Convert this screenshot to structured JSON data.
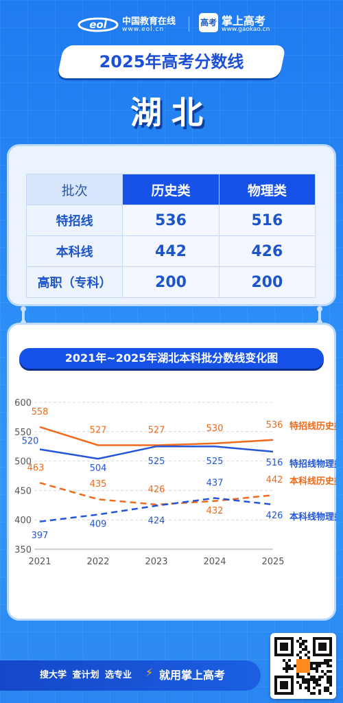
{
  "header": {
    "eol_name": "中国教育在线",
    "eol_url": "www.eol.cn",
    "gaokao_icon": "高考",
    "gaokao_name": "掌上高考",
    "gaokao_url": "www.gaokao.cn"
  },
  "title": "2025年高考分数线",
  "province": "湖北",
  "table": {
    "headers": [
      "批次",
      "历史类",
      "物理类"
    ],
    "rows": [
      {
        "label": "特招线",
        "history": "536",
        "physics": "516"
      },
      {
        "label": "本科线",
        "history": "442",
        "physics": "426"
      },
      {
        "label": "高职（专科）",
        "history": "200",
        "physics": "200"
      }
    ]
  },
  "chart_title": "2021年~2025年湖北本科批分数线变化图",
  "chart_data": {
    "type": "line",
    "x": [
      "2021",
      "2022",
      "2023",
      "2024",
      "2025"
    ],
    "ylim": [
      350,
      600
    ],
    "yticks": [
      "350",
      "400",
      "450",
      "500",
      "550",
      "600"
    ],
    "grid": true,
    "series": [
      {
        "name": "特招线历史类",
        "values": [
          558,
          527,
          527,
          530,
          536
        ],
        "labels": [
          "558",
          "527",
          "527",
          "530",
          "536"
        ],
        "color": "#ef6a1a",
        "dashed": false
      },
      {
        "name": "特招线物理类",
        "values": [
          520,
          504,
          525,
          525,
          516
        ],
        "labels": [
          "520",
          "504",
          "525",
          "525",
          "516"
        ],
        "color": "#2255d8",
        "dashed": false
      },
      {
        "name": "本科线历史类",
        "values": [
          463,
          435,
          426,
          432,
          442
        ],
        "labels": [
          "463",
          "435",
          "426",
          "432",
          "442"
        ],
        "color": "#ef6a1a",
        "dashed": true
      },
      {
        "name": "本科线物理类",
        "values": [
          397,
          409,
          424,
          437,
          426
        ],
        "labels": [
          "397",
          "409",
          "424",
          "437",
          "426"
        ],
        "color": "#2255d8",
        "dashed": true
      }
    ]
  },
  "footer": {
    "items": "搜大学 查计划 选专业",
    "slogan": "就用掌上高考"
  },
  "colors": {
    "background": "#2a8bf6",
    "primary_blue": "#1652e8",
    "orange": "#ef6a1a"
  }
}
